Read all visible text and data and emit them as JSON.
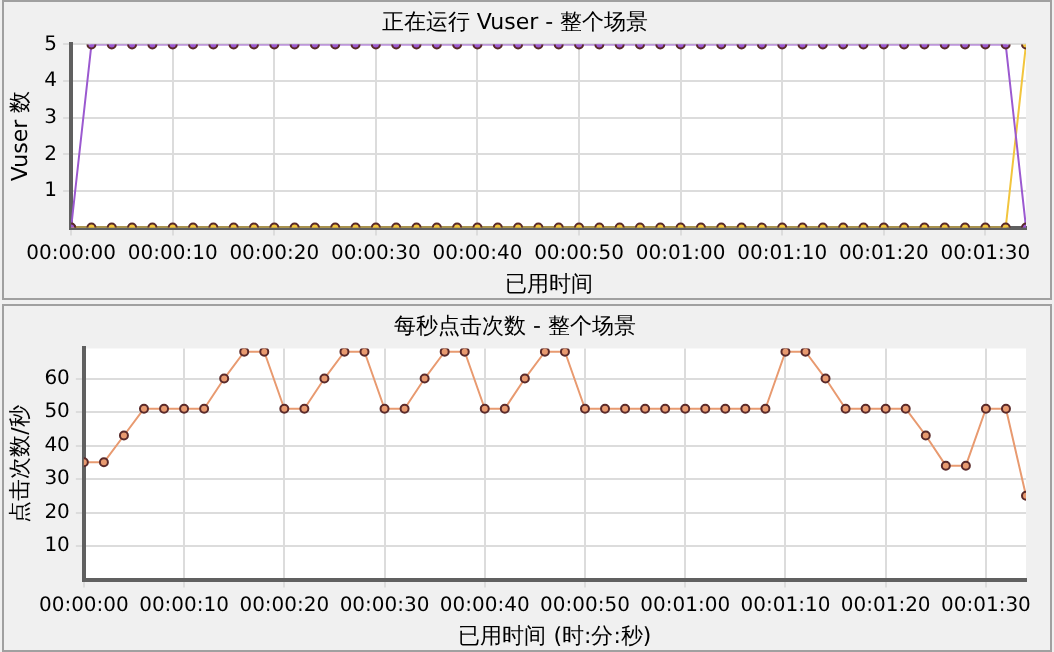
{
  "chart_data": [
    {
      "type": "line",
      "title": "正在运行 Vuser - 整个场景",
      "xlabel": "已用时间",
      "ylabel": "Vuser 数",
      "x": [
        0,
        2,
        4,
        6,
        8,
        10,
        12,
        14,
        16,
        18,
        20,
        22,
        24,
        26,
        28,
        30,
        32,
        34,
        36,
        38,
        40,
        42,
        44,
        46,
        48,
        50,
        52,
        54,
        56,
        58,
        60,
        62,
        64,
        66,
        68,
        70,
        72,
        74,
        76,
        78,
        80,
        82,
        84,
        86,
        88,
        90,
        92,
        94
      ],
      "series": [
        {
          "color": "#9b59d0",
          "values": [
            0,
            5,
            5,
            5,
            5,
            5,
            5,
            5,
            5,
            5,
            5,
            5,
            5,
            5,
            5,
            5,
            5,
            5,
            5,
            5,
            5,
            5,
            5,
            5,
            5,
            5,
            5,
            5,
            5,
            5,
            5,
            5,
            5,
            5,
            5,
            5,
            5,
            5,
            5,
            5,
            5,
            5,
            5,
            5,
            5,
            5,
            5,
            0
          ]
        },
        {
          "color": "#f2c53d",
          "values": [
            0,
            0,
            0,
            0,
            0,
            0,
            0,
            0,
            0,
            0,
            0,
            0,
            0,
            0,
            0,
            0,
            0,
            0,
            0,
            0,
            0,
            0,
            0,
            0,
            0,
            0,
            0,
            0,
            0,
            0,
            0,
            0,
            0,
            0,
            0,
            0,
            0,
            0,
            0,
            0,
            0,
            0,
            0,
            0,
            0,
            0,
            0,
            5
          ]
        }
      ],
      "xlim": [
        0,
        94
      ],
      "xticks": [
        {
          "value": 0,
          "label": "00:00:00"
        },
        {
          "value": 10,
          "label": "00:00:10"
        },
        {
          "value": 20,
          "label": "00:00:20"
        },
        {
          "value": 30,
          "label": "00:00:30"
        },
        {
          "value": 40,
          "label": "00:00:40"
        },
        {
          "value": 50,
          "label": "00:00:50"
        },
        {
          "value": 60,
          "label": "00:01:00"
        },
        {
          "value": 70,
          "label": "00:01:10"
        },
        {
          "value": 80,
          "label": "00:01:20"
        },
        {
          "value": 90,
          "label": "00:01:30"
        }
      ],
      "ylim": [
        0,
        5
      ],
      "yticks": [
        1,
        2,
        3,
        4,
        5
      ],
      "grid": true,
      "marker": "circle",
      "line_style": "solid"
    },
    {
      "type": "line",
      "title": "每秒点击次数 - 整个场景",
      "xlabel": "已用时间 (时:分:秒)",
      "ylabel": "点击次数/秒",
      "x": [
        0,
        2,
        4,
        6,
        8,
        10,
        12,
        14,
        16,
        18,
        20,
        22,
        24,
        26,
        28,
        30,
        32,
        34,
        36,
        38,
        40,
        42,
        44,
        46,
        48,
        50,
        52,
        54,
        56,
        58,
        60,
        62,
        64,
        66,
        68,
        70,
        72,
        74,
        76,
        78,
        80,
        82,
        84,
        86,
        88,
        90,
        92,
        94
      ],
      "series": [
        {
          "color": "#e89a70",
          "values": [
            35,
            35,
            43,
            51,
            51,
            51,
            51,
            60,
            68,
            68,
            51,
            51,
            60,
            68,
            68,
            51,
            51,
            60,
            68,
            68,
            51,
            51,
            60,
            68,
            68,
            51,
            51,
            51,
            51,
            51,
            51,
            51,
            51,
            51,
            51,
            68,
            68,
            60,
            51,
            51,
            51,
            51,
            43,
            34,
            34,
            51,
            51,
            25
          ]
        }
      ],
      "xlim": [
        0,
        94
      ],
      "xticks": [
        {
          "value": 0,
          "label": "00:00:00"
        },
        {
          "value": 10,
          "label": "00:00:10"
        },
        {
          "value": 20,
          "label": "00:00:20"
        },
        {
          "value": 30,
          "label": "00:00:30"
        },
        {
          "value": 40,
          "label": "00:00:40"
        },
        {
          "value": 50,
          "label": "00:00:50"
        },
        {
          "value": 60,
          "label": "00:01:00"
        },
        {
          "value": 70,
          "label": "00:01:10"
        },
        {
          "value": 80,
          "label": "00:01:20"
        },
        {
          "value": 90,
          "label": "00:01:30"
        }
      ],
      "ylim": [
        0,
        69
      ],
      "yticks": [
        10,
        20,
        30,
        40,
        50,
        60
      ],
      "grid": true,
      "marker": "circle",
      "line_style": "solid"
    }
  ]
}
